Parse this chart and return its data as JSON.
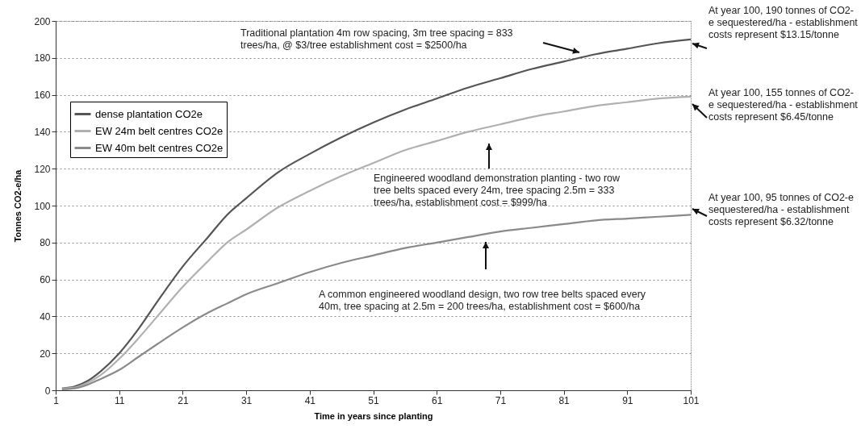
{
  "chart_data": {
    "type": "line",
    "xlabel": "Time in years since planting",
    "ylabel": "Tonnes CO2-e/ha",
    "x": [
      2,
      4,
      6,
      8,
      11,
      14,
      17,
      21,
      25,
      28,
      31,
      36,
      41,
      46,
      51,
      56,
      61,
      66,
      71,
      76,
      81,
      86,
      91,
      96,
      101
    ],
    "series": [
      {
        "name": "dense plantation CO2e",
        "color": "#555555",
        "values": [
          1,
          2,
          5,
          10,
          20,
          33,
          48,
          67,
          83,
          95,
          104,
          118,
          128,
          137,
          145,
          152,
          158,
          164,
          169,
          174,
          178,
          182,
          185,
          188,
          190
        ]
      },
      {
        "name": "EW 24m belt centres CO2e",
        "color": "#b0b0b0",
        "values": [
          1,
          1.5,
          4,
          8,
          17,
          28,
          40,
          56,
          70,
          80,
          87,
          99,
          108,
          116,
          123,
          130,
          135,
          140,
          144,
          148,
          151,
          154,
          156,
          158,
          159
        ]
      },
      {
        "name": "EW 40m belt centres CO2e",
        "color": "#8a8a8a",
        "values": [
          0.5,
          1,
          3,
          6,
          11,
          18,
          25,
          34,
          42,
          47,
          52,
          58,
          64,
          69,
          73,
          77,
          80,
          83,
          86,
          88,
          90,
          92,
          93,
          94,
          95
        ]
      }
    ],
    "xlim": [
      1,
      101
    ],
    "xticks": [
      1,
      11,
      21,
      31,
      41,
      51,
      61,
      71,
      81,
      91,
      101
    ],
    "ylim": [
      0,
      200
    ],
    "yticks": [
      0,
      20,
      40,
      60,
      80,
      100,
      120,
      140,
      160,
      180,
      200
    ],
    "grid": "y",
    "legend": "top left",
    "marker": "none",
    "line_style": "solid",
    "annotations": [
      "Traditional plantation 4m row spacing, 3m tree spacing = 833 trees/ha, @ $3/tree establishment cost = $2500/ha",
      "Engineered woodland demonstration planting - two row tree belts spaced every 24m, tree spacing 2.5m = 333 trees/ha, establishment cost = $999/ha",
      "A common engineered woodland design, two row tree belts spaced every 40m, tree spacing at 2.5m = 200 trees/ha, establishment cost = $600/ha",
      "At year 100, 190 tonnes of CO2-e sequestered/ha - establishment costs represent $13.15/tonne",
      "At year 100, 155 tonnes of CO2-e sequestered/ha - establishment costs represent $6.45/tonne",
      "At year 100, 95 tonnes of CO2-e sequestered/ha - establishment costs represent $6.32/tonne"
    ]
  }
}
